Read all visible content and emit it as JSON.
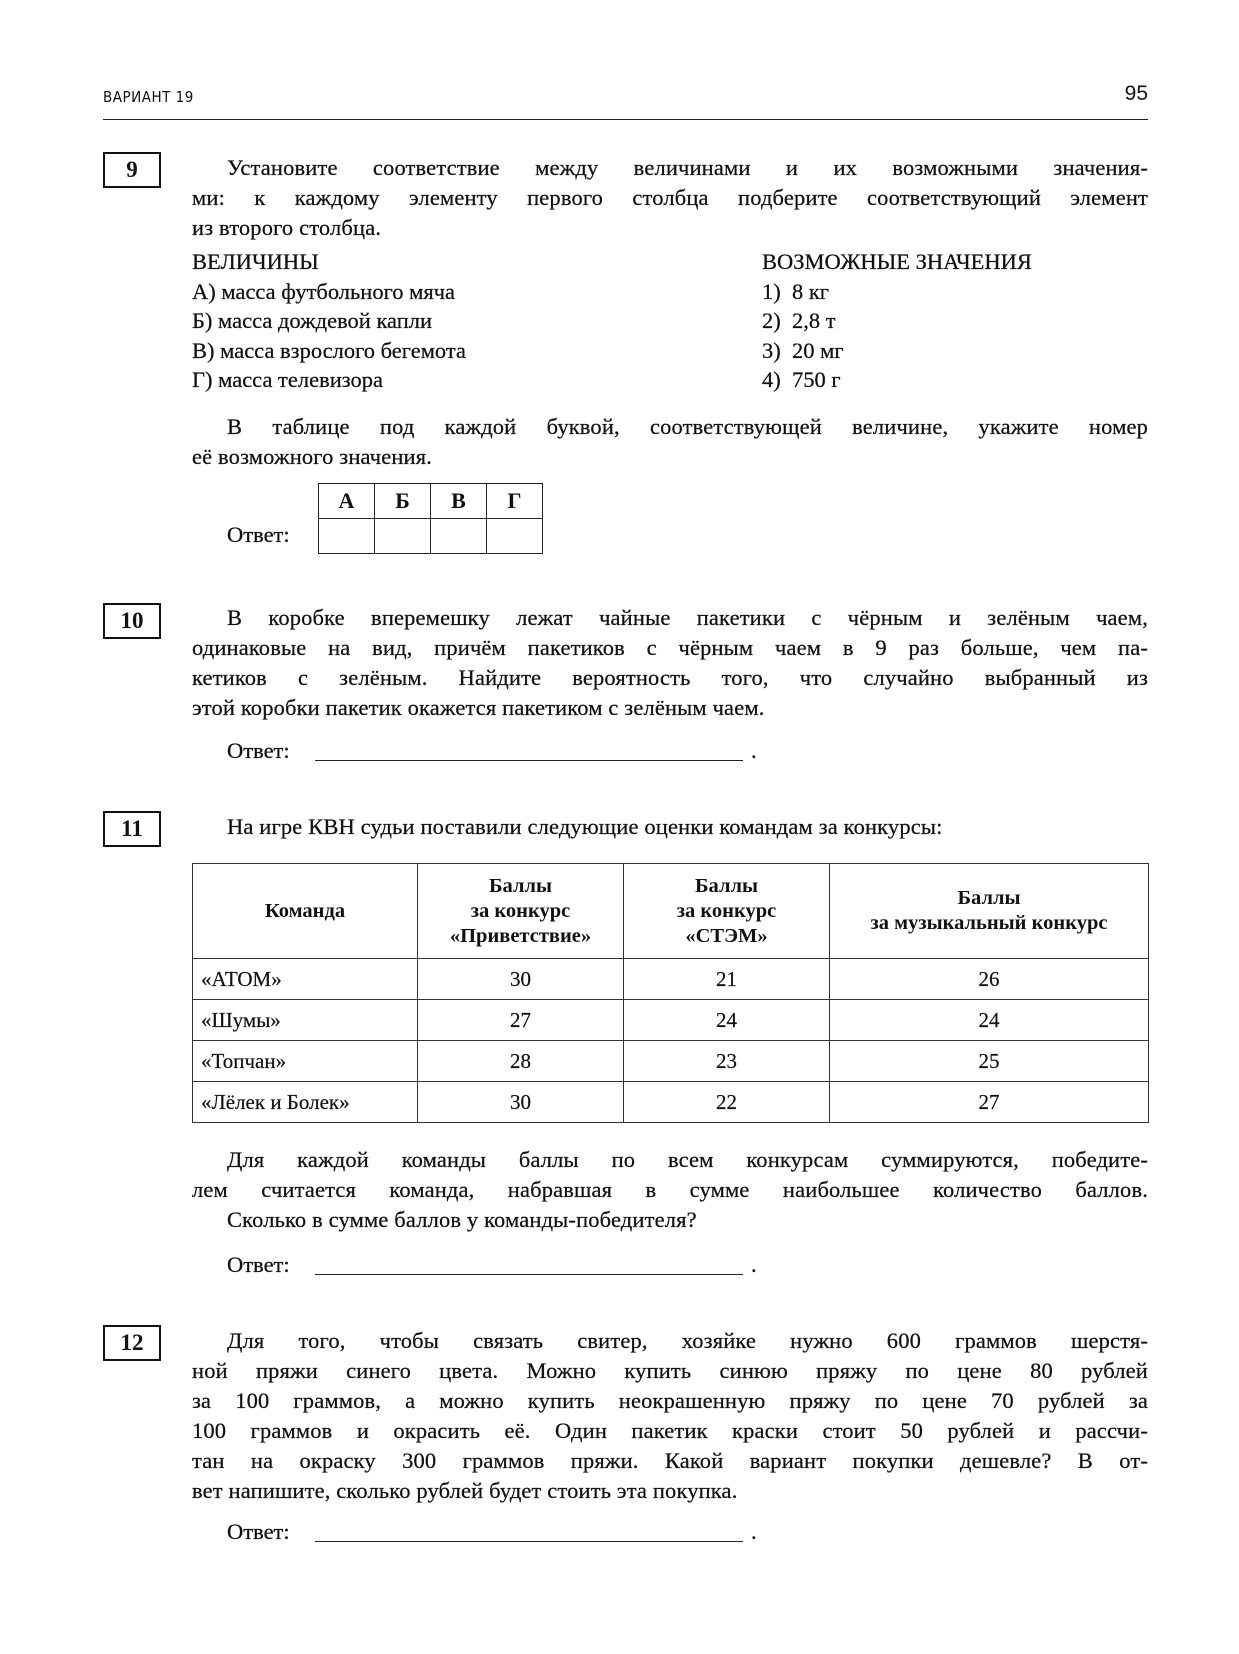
{
  "header": {
    "variant": "ВАРИАНТ 19",
    "page_number": "95"
  },
  "answer_label": "Ответ:",
  "answer_dot": ".",
  "q9": {
    "number": "9",
    "intro": [
      "Установите соответствие между величинами и их возможными значения-",
      "ми: к каждому элементу первого столбца подберите соответствующий элемент",
      "из второго столбца."
    ],
    "left_heading": "ВЕЛИЧИНЫ",
    "right_heading": "ВОЗМОЖНЫЕ ЗНАЧЕНИЯ",
    "left_items": [
      "А) масса футбольного мяча",
      "Б) масса дождевой капли",
      "В) масса взрослого бегемота",
      "Г) масса телевизора"
    ],
    "right_items": [
      "1)  8 кг",
      "2)  2,8 т",
      "3)  20 мг",
      "4)  750 г"
    ],
    "instruction": [
      "В таблице под каждой буквой, соответствующей величине, укажите номер",
      "её возможного значения."
    ],
    "answer_letters": [
      "А",
      "Б",
      "В",
      "Г"
    ]
  },
  "q10": {
    "number": "10",
    "text": [
      "В коробке вперемешку лежат чайные пакетики с чёрным и зелёным чаем,",
      "одинаковые на вид, причём пакетиков с чёрным чаем в 9 раз больше, чем па-",
      "кетиков с зелёным. Найдите вероятность того, что случайно выбранный из",
      "этой коробки пакетик окажется пакетиком с зелёным чаем."
    ]
  },
  "q11": {
    "number": "11",
    "intro": "На игре КВН судьи поставили следующие оценки командам за конкурсы:",
    "table": {
      "headers": [
        [
          "Команда"
        ],
        [
          "Баллы",
          "за конкурс",
          "«Приветствие»"
        ],
        [
          "Баллы",
          "за конкурс",
          "«СТЭМ»"
        ],
        [
          "Баллы",
          "за музыкальный конкурс"
        ]
      ],
      "rows": [
        [
          "«АТОМ»",
          "30",
          "21",
          "26"
        ],
        [
          "«Шумы»",
          "27",
          "24",
          "24"
        ],
        [
          "«Топчан»",
          "28",
          "23",
          "25"
        ],
        [
          "«Лёлек и Болек»",
          "30",
          "22",
          "27"
        ]
      ]
    },
    "text": [
      "Для каждой команды баллы по всем конкурсам суммируются, победите-",
      "лем считается команда, набравшая в сумме наибольшее количество баллов.",
      "Сколько в сумме баллов у команды-победителя?"
    ]
  },
  "q12": {
    "number": "12",
    "text": [
      "Для того, чтобы связать свитер, хозяйке нужно 600 граммов шерстя-",
      "ной пряжи синего цвета. Можно купить синюю пряжу по цене 80 рублей",
      "за 100 граммов, а можно купить неокрашенную пряжу по цене 70 рублей за",
      "100 граммов и окрасить её. Один пакетик краски стоит 50 рублей и рассчи-",
      "тан на окраску 300 граммов пряжи. Какой вариант покупки дешевле? В от-",
      "вет напишите, сколько рублей будет стоить эта покупка."
    ]
  }
}
